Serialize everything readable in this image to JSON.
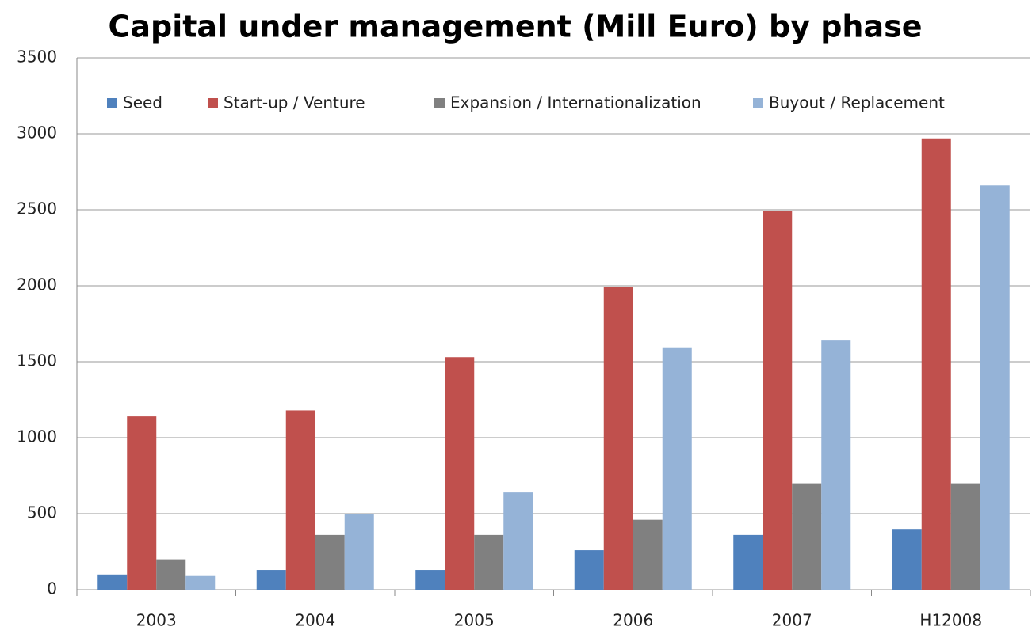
{
  "chart_data": {
    "type": "bar",
    "title": "Capital under management (Mill Euro) by phase",
    "categories": [
      "2003",
      "2004",
      "2005",
      "2006",
      "2007",
      "H12008"
    ],
    "series": [
      {
        "name": "Seed",
        "color": "#4f81bd",
        "values": [
          100,
          130,
          130,
          260,
          360,
          400
        ]
      },
      {
        "name": "Start-up / Venture",
        "color": "#c0504d",
        "values": [
          1140,
          1180,
          1530,
          1990,
          2490,
          2970
        ]
      },
      {
        "name": "Expansion / Internationalization",
        "color": "#808080",
        "values": [
          200,
          360,
          360,
          460,
          700,
          700
        ]
      },
      {
        "name": "Buyout / Replacement",
        "color": "#95b3d7",
        "values": [
          90,
          500,
          640,
          1590,
          1640,
          2660
        ]
      }
    ],
    "ylim": [
      0,
      3500
    ],
    "yticks": [
      0,
      500,
      1000,
      1500,
      2000,
      2500,
      3000,
      3500
    ],
    "grid": true,
    "legend": "top"
  }
}
